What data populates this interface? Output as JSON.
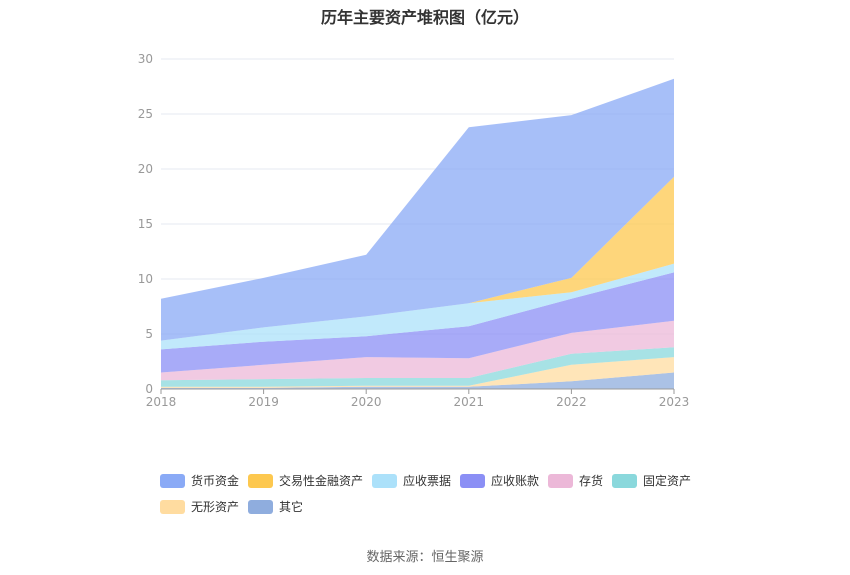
{
  "chart_data": {
    "type": "area",
    "stacked": true,
    "title": "历年主要资产堆积图（亿元）",
    "xlabel": "",
    "ylabel": "",
    "x": [
      "2018",
      "2019",
      "2020",
      "2021",
      "2022",
      "2023"
    ],
    "ylim": [
      0,
      30
    ],
    "yticks": [
      "0",
      "5",
      "10",
      "15",
      "20",
      "25",
      "30"
    ],
    "grid": true,
    "legend_position": "bottom",
    "series": [
      {
        "name": "其它",
        "color": "#8fadde",
        "values": [
          0.1,
          0.1,
          0.2,
          0.2,
          0.7,
          1.5
        ]
      },
      {
        "name": "无形资产",
        "color": "#ffdca0",
        "values": [
          0.1,
          0.1,
          0.1,
          0.1,
          1.5,
          1.4
        ]
      },
      {
        "name": "固定资产",
        "color": "#8ad8dc",
        "values": [
          0.6,
          0.7,
          0.7,
          0.7,
          1.0,
          0.9
        ]
      },
      {
        "name": "存货",
        "color": "#ecb8d8",
        "values": [
          0.7,
          1.3,
          1.9,
          1.8,
          1.9,
          2.4
        ]
      },
      {
        "name": "应收账款",
        "color": "#8b8ff5",
        "values": [
          2.1,
          2.1,
          1.9,
          2.9,
          3.1,
          4.4
        ]
      },
      {
        "name": "应收票据",
        "color": "#ace1fa",
        "values": [
          0.8,
          1.3,
          1.8,
          2.1,
          0.6,
          0.8
        ]
      },
      {
        "name": "交易性金融资产",
        "color": "#fdc84f",
        "values": [
          0.0,
          0.0,
          0.0,
          0.0,
          1.3,
          7.9
        ]
      },
      {
        "name": "货币资金",
        "color": "#8aaaf6",
        "values": [
          3.8,
          4.5,
          5.6,
          16.0,
          14.8,
          8.9
        ]
      }
    ],
    "legend_order": [
      "货币资金",
      "交易性金融资产",
      "应收票据",
      "应收账款",
      "存货",
      "固定资产",
      "无形资产",
      "其它"
    ]
  },
  "source": "数据来源：恒生聚源"
}
